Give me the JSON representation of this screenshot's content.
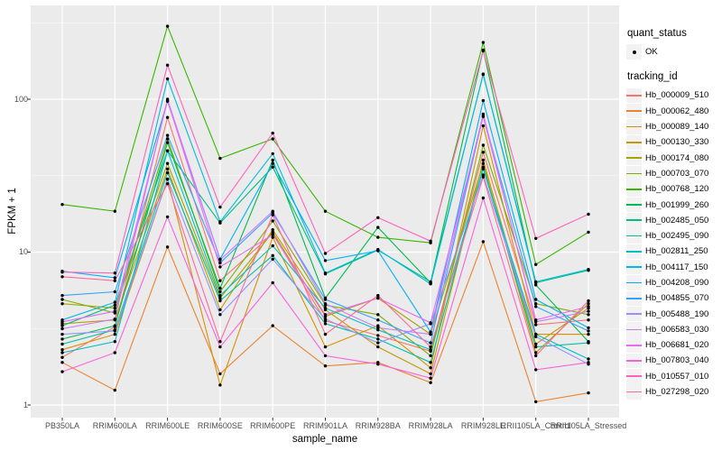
{
  "figure": {
    "panel_background": "#EBEBEB",
    "grid_color": "#FFFFFF",
    "point_color": "#000000",
    "axis_text_color": "#4D4D4D",
    "tick_color": "#333333"
  },
  "legend": {
    "quant_status_title": "quant_status",
    "ok_label": "OK",
    "tracking_title": "tracking_id"
  },
  "chart_data": {
    "type": "line",
    "title": "",
    "xlabel": "sample_name",
    "ylabel": "FPKM + 1",
    "y_scale": "log10",
    "grid": true,
    "legend_position": "right",
    "ylim": [
      0.83,
      410
    ],
    "y_ticks": [
      "1",
      "10",
      "100"
    ],
    "y_tick_values": [
      1,
      10,
      100
    ],
    "y_minor_values": [
      3.162,
      31.623,
      316.228
    ],
    "categories": [
      "PB350LA",
      "RRIM600LA",
      "RRIM600LE",
      "RRIM600SE",
      "RRIM600PE",
      "RRIM901LA",
      "RRIM928BA",
      "RRIM928LA",
      "RRIM928LE",
      "RRII105LA_Control",
      "RRII105LA_Stressed"
    ],
    "series": [
      {
        "name": "Hb_000009_510",
        "color": "#F8766D",
        "values": [
          2.05,
          3.25,
          76,
          6.5,
          13.2,
          3.55,
          2.85,
          2.25,
          45,
          3.35,
          3.6
        ]
      },
      {
        "name": "Hb_000062_480",
        "color": "#EA8331",
        "values": [
          1.9,
          1.25,
          10.8,
          1.6,
          3.3,
          1.8,
          1.9,
          1.4,
          11.7,
          1.05,
          1.2
        ]
      },
      {
        "name": "Hb_000089_140",
        "color": "#D89000",
        "values": [
          2.3,
          2.9,
          30,
          1.35,
          12.5,
          2.4,
          3.3,
          1.75,
          67,
          2.9,
          2.9
        ]
      },
      {
        "name": "Hb_000130_330",
        "color": "#C09B00",
        "values": [
          3.4,
          3.6,
          35,
          4.2,
          14,
          4.2,
          2.4,
          1.6,
          40,
          2.5,
          4.3
        ]
      },
      {
        "name": "Hb_000174_080",
        "color": "#A3A500",
        "values": [
          4.6,
          4.3,
          38,
          5.0,
          13.5,
          3.8,
          5.0,
          2.9,
          38,
          2.2,
          4.6
        ]
      },
      {
        "name": "Hb_000703_070",
        "color": "#7CAE00",
        "values": [
          4.9,
          4.0,
          55,
          5.5,
          16,
          4.5,
          3.9,
          2.1,
          50,
          4.6,
          3.9
        ]
      },
      {
        "name": "Hb_000768_120",
        "color": "#39B600",
        "values": [
          20.5,
          18.5,
          300,
          41,
          55,
          18.5,
          12.5,
          11.5,
          235,
          8.3,
          13.5
        ]
      },
      {
        "name": "Hb_001999_260",
        "color": "#00BB4E",
        "values": [
          2.7,
          3.3,
          52,
          5.8,
          40,
          5.0,
          14.5,
          6.3,
          210,
          6.1,
          2.6
        ]
      },
      {
        "name": "Hb_002485_050",
        "color": "#00BF7D",
        "values": [
          3.3,
          4.5,
          46,
          15.5,
          36,
          7.2,
          10.3,
          6.4,
          145,
          6.3,
          7.6
        ]
      },
      {
        "name": "Hb_002495_090",
        "color": "#00C1A3",
        "values": [
          2.5,
          3.1,
          33,
          4.8,
          9.5,
          3.4,
          2.7,
          1.9,
          36,
          2.4,
          2.55
        ]
      },
      {
        "name": "Hb_002811_250",
        "color": "#00BFC4",
        "values": [
          2.2,
          2.6,
          46,
          5.2,
          11,
          4.3,
          3.1,
          2.3,
          35,
          2.9,
          2.0
        ]
      },
      {
        "name": "Hb_004117_150",
        "color": "#00BAE0",
        "values": [
          3.6,
          4.7,
          136,
          15.8,
          44,
          7.3,
          10.4,
          6.2,
          146,
          6.4,
          7.7
        ]
      },
      {
        "name": "Hb_004208_090",
        "color": "#00B0F6",
        "values": [
          7.5,
          6.8,
          97,
          9.0,
          38,
          8.8,
          10.2,
          3.0,
          98,
          4.9,
          3.2
        ]
      },
      {
        "name": "Hb_004855_070",
        "color": "#35A2FF",
        "values": [
          5.2,
          5.5,
          58,
          8.5,
          18,
          4.9,
          3.6,
          2.55,
          78,
          4.4,
          3.05
        ]
      },
      {
        "name": "Hb_005488_190",
        "color": "#9590FF",
        "values": [
          2.9,
          3.05,
          30,
          3.9,
          9.0,
          3.65,
          2.55,
          3.4,
          32,
          2.8,
          1.85
        ]
      },
      {
        "name": "Hb_006583_030",
        "color": "#C77CFF",
        "values": [
          3.15,
          3.65,
          100,
          8.9,
          18.5,
          4.6,
          3.2,
          2.9,
          80,
          3.5,
          4.1
        ]
      },
      {
        "name": "Hb_006681_020",
        "color": "#E76BF3",
        "values": [
          3.5,
          4.1,
          98,
          8.0,
          13,
          3.9,
          5.0,
          3.45,
          77,
          3.6,
          4.4
        ]
      },
      {
        "name": "Hb_007803_040",
        "color": "#FA62DB",
        "values": [
          1.65,
          2.2,
          17,
          2.4,
          6.3,
          2.1,
          1.85,
          1.5,
          22.6,
          1.7,
          1.9
        ]
      },
      {
        "name": "Hb_010557_010",
        "color": "#FF62BC",
        "values": [
          7.4,
          7.3,
          167,
          19.7,
          60,
          9.8,
          16.8,
          11.8,
          207,
          12.3,
          17.7
        ]
      },
      {
        "name": "Hb_027298_020",
        "color": "#FF6A98",
        "values": [
          6.9,
          6.5,
          28,
          2.6,
          17.5,
          2.9,
          5.2,
          2.4,
          31,
          2.1,
          4.8
        ]
      }
    ]
  }
}
